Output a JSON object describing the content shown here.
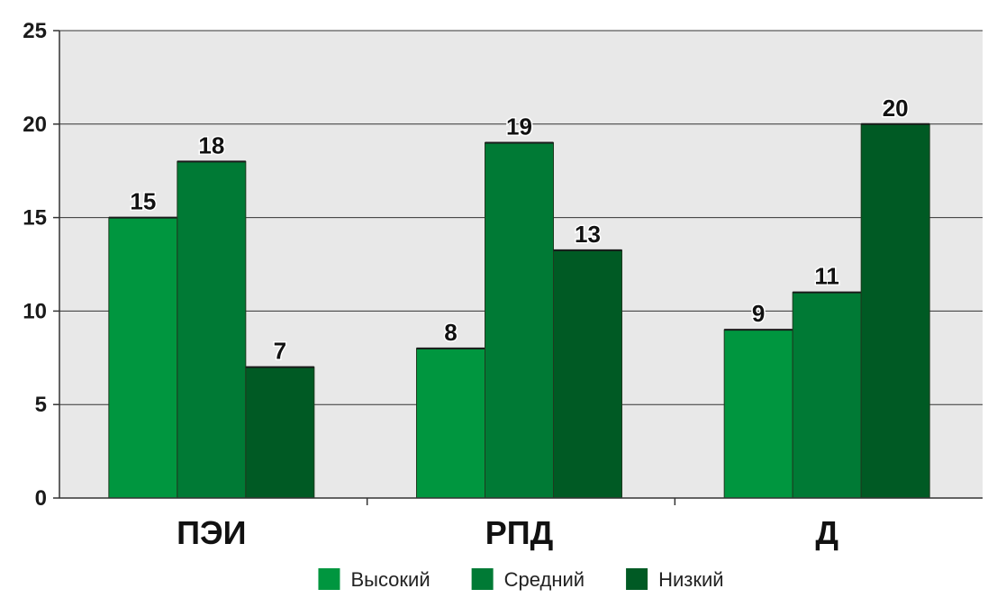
{
  "chart_data": {
    "type": "bar",
    "categories": [
      "ПЭИ",
      "РПД",
      "Д"
    ],
    "series": [
      {
        "name": "Высокий",
        "values": [
          15,
          8,
          9
        ],
        "color": "#00963f"
      },
      {
        "name": "Средний",
        "values": [
          18,
          19,
          11
        ],
        "color": "#007a35"
      },
      {
        "name": "Низкий",
        "values": [
          7,
          13,
          20
        ],
        "color": "#005a24"
      }
    ],
    "data_labels": [
      [
        "15",
        "8",
        "9"
      ],
      [
        "18",
        "19",
        "11"
      ],
      [
        "7",
        "13",
        "20"
      ]
    ],
    "bar_heights": [
      [
        15,
        8,
        9
      ],
      [
        18,
        19,
        11
      ],
      [
        7,
        13.25,
        20
      ]
    ],
    "yticks": [
      "0",
      "5",
      "10",
      "15",
      "20",
      "25"
    ],
    "ylim": [
      0,
      25
    ],
    "grid": true,
    "legend": "bottom",
    "title": "",
    "xlabel": "",
    "ylabel": "",
    "colors": {
      "plot_background": "#e8e8e8",
      "gridline": "#333333"
    }
  }
}
